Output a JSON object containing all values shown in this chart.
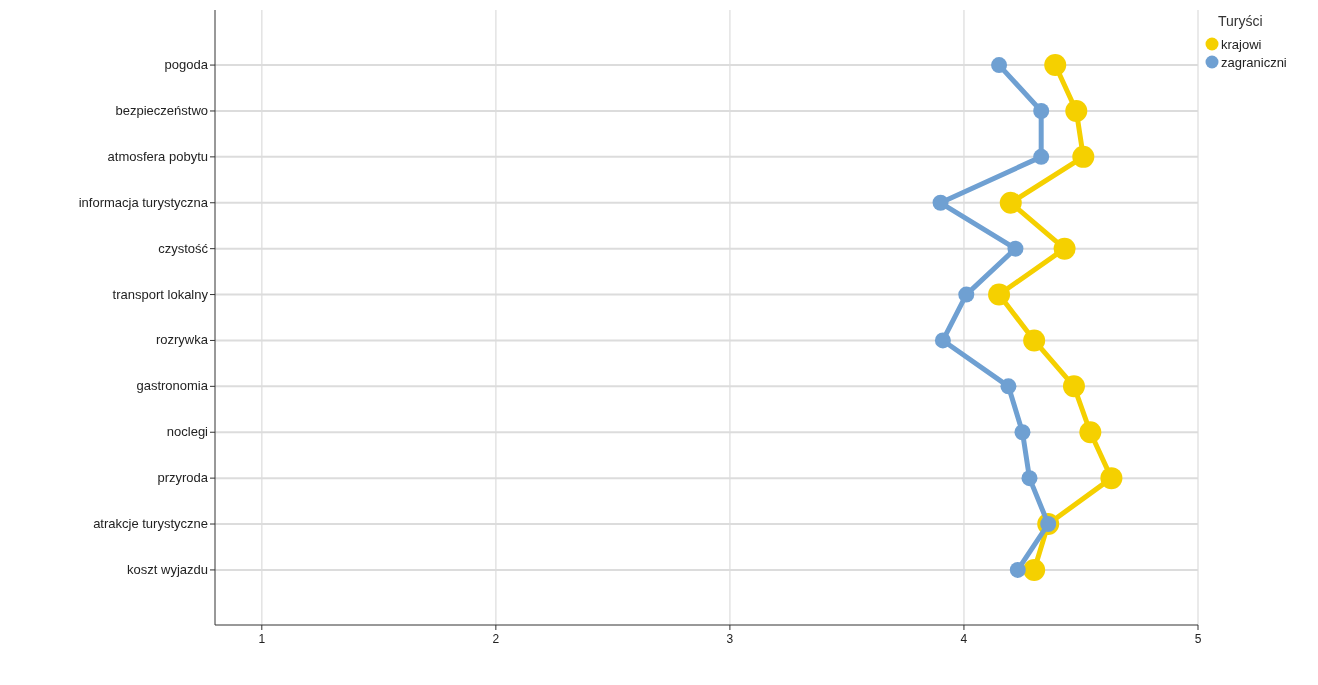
{
  "chart_data": {
    "type": "line",
    "categories": [
      "pogoda",
      "bezpieczeństwo",
      "atmosfera pobytu",
      "informacja turystyczna",
      "czystość",
      "transport lokalny",
      "rozrywka",
      "gastronomia",
      "noclegi",
      "przyroda",
      "atrakcje turystyczne",
      "koszt wyjazdu"
    ],
    "orientation": "horizontal",
    "legend_title": "Turyści",
    "legend": "top right",
    "marker": "circle",
    "grid": true,
    "xlim": [
      0.8,
      5
    ],
    "xticks": [
      1,
      2,
      3,
      4,
      5
    ],
    "series": [
      {
        "name": "krajowi",
        "color": "#f5d000",
        "values": [
          4.39,
          4.48,
          4.51,
          4.2,
          4.43,
          4.15,
          4.3,
          4.47,
          4.54,
          4.63,
          4.36,
          4.3
        ]
      },
      {
        "name": "zagraniczni",
        "color": "#6fa0d2",
        "values": [
          4.15,
          4.33,
          4.33,
          3.9,
          4.22,
          4.01,
          3.91,
          4.19,
          4.25,
          4.28,
          4.36,
          4.23
        ]
      }
    ]
  }
}
